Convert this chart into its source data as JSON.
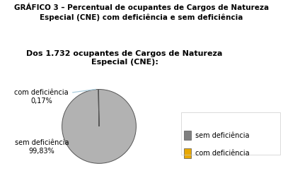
{
  "title": "GRÁFICO 3 – Percentual de ocupantes de Cargos de Natureza\nEspecial (CNE) com deficiência e sem deficiência",
  "subtitle": "Dos 1.732 ocupantes de Cargos de Natureza\nEspecial (CNE):",
  "slices": [
    99.83,
    0.17
  ],
  "labels": [
    "sem deficiência",
    "com deficiência"
  ],
  "pct_labels": [
    "99,83%",
    "0,17%"
  ],
  "pie_colors": [
    "#b2b2b2",
    "#ffffff"
  ],
  "edge_color": "#555555",
  "background_color": "#ffffff",
  "legend_box_colors": [
    "#808080",
    "#e8a800"
  ],
  "title_fontsize": 7.5,
  "subtitle_fontsize": 8,
  "label_fontsize": 7,
  "legend_fontsize": 7,
  "arrow_color": "#aaccdd"
}
